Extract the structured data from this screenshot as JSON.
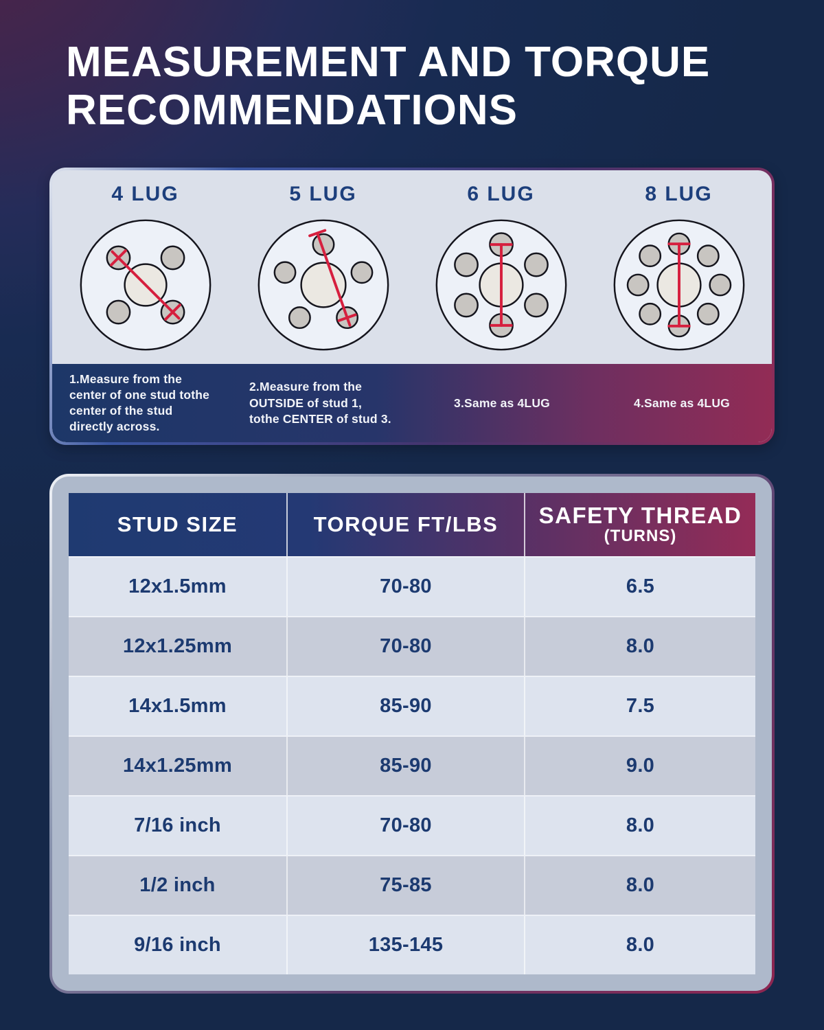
{
  "title": "MEASUREMENT AND TORQUE RECOMMENDATIONS",
  "lug_panel": {
    "items": [
      {
        "label": "4 LUG",
        "count": 4,
        "note": "1.Measure from the center of one stud tothe center of the stud directly across."
      },
      {
        "label": "5 LUG",
        "count": 5,
        "note": "2.Measure from the OUTSIDE of stud 1, tothe CENTER of stud 3."
      },
      {
        "label": "6 LUG",
        "count": 6,
        "note": "3.Same as 4LUG"
      },
      {
        "label": "8 LUG",
        "count": 8,
        "note": "4.Same as 4LUG"
      }
    ]
  },
  "table": {
    "headers": [
      {
        "label": "STUD SIZE",
        "sub": ""
      },
      {
        "label": "TORQUE FT/LBS",
        "sub": ""
      },
      {
        "label": "SAFETY THREAD",
        "sub": "(TURNS)"
      }
    ],
    "rows": [
      {
        "stud_size": "12x1.5mm",
        "torque": "70-80",
        "safety_thread": "6.5"
      },
      {
        "stud_size": "12x1.25mm",
        "torque": "70-80",
        "safety_thread": "8.0"
      },
      {
        "stud_size": "14x1.5mm",
        "torque": "85-90",
        "safety_thread": "7.5"
      },
      {
        "stud_size": "14x1.25mm",
        "torque": "85-90",
        "safety_thread": "9.0"
      },
      {
        "stud_size": "7/16 inch",
        "torque": "70-80",
        "safety_thread": "8.0"
      },
      {
        "stud_size": "1/2 inch",
        "torque": "75-85",
        "safety_thread": "8.0"
      },
      {
        "stud_size": "9/16 inch",
        "torque": "135-145",
        "safety_thread": "8.0"
      }
    ]
  },
  "colors": {
    "measure_red": "#d61f3e",
    "wheel_fill": "#edf1f8",
    "hub_fill": "#ebe8e2",
    "stud_fill": "#c8c5c1",
    "outline": "#15151d",
    "navy_text": "#1c3a70",
    "header_gradient_left": "#1f3a71",
    "header_gradient_right": "#942c57"
  }
}
